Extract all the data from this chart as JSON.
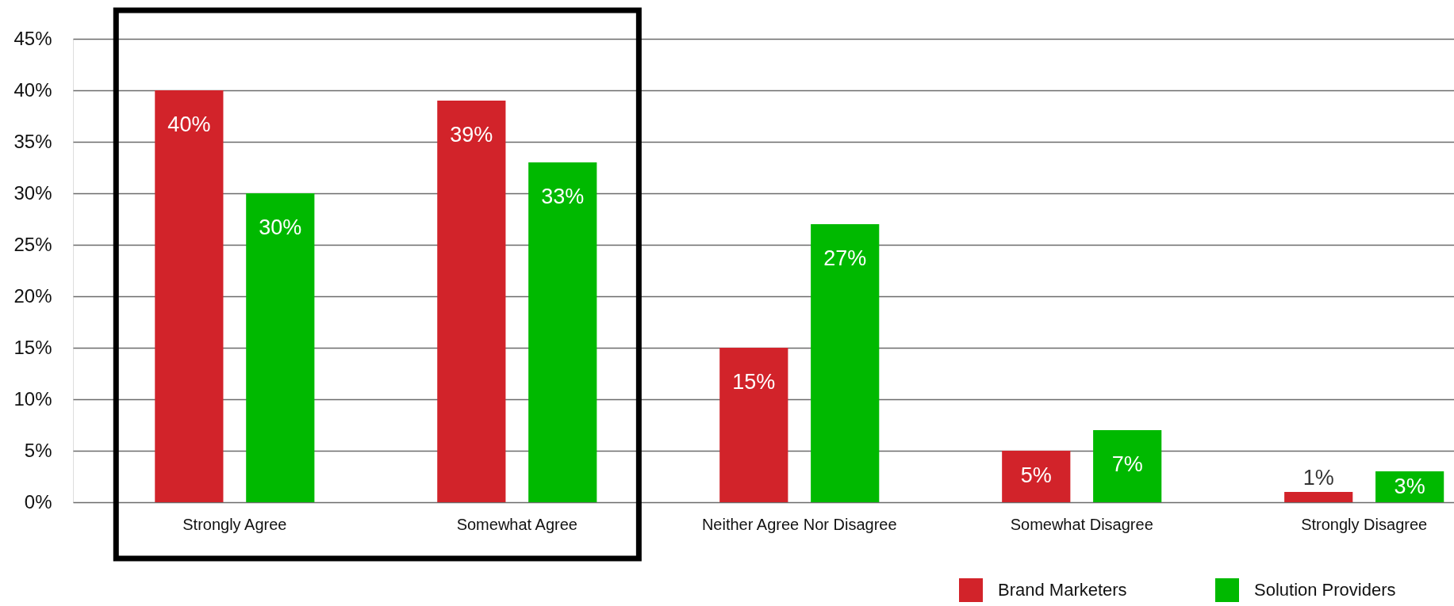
{
  "chart_data": {
    "type": "bar",
    "categories": [
      "Strongly Agree",
      "Somewhat Agree",
      "Neither Agree Nor Disagree",
      "Somewhat Disagree",
      "Strongly Disagree"
    ],
    "series": [
      {
        "name": "Brand Marketers",
        "color": "#d2232a",
        "values": [
          40,
          39,
          15,
          5,
          1
        ],
        "value_labels": [
          "40%",
          "39%",
          "15%",
          "5%",
          "1%"
        ]
      },
      {
        "name": "Solution Providers",
        "color": "#00b900",
        "values": [
          30,
          33,
          27,
          7,
          3
        ],
        "value_labels": [
          "30%",
          "33%",
          "27%",
          "7%",
          "3%"
        ]
      }
    ],
    "ylim": [
      0,
      45
    ],
    "yticks": [
      {
        "value": 0,
        "label": "0%"
      },
      {
        "value": 5,
        "label": "5%"
      },
      {
        "value": 10,
        "label": "10%"
      },
      {
        "value": 15,
        "label": "15%"
      },
      {
        "value": 20,
        "label": "20%"
      },
      {
        "value": 25,
        "label": "25%"
      },
      {
        "value": 30,
        "label": "30%"
      },
      {
        "value": 35,
        "label": "35%"
      },
      {
        "value": 40,
        "label": "40%"
      },
      {
        "value": 45,
        "label": "45%"
      }
    ],
    "grid": "y",
    "legend": "bottom right"
  }
}
